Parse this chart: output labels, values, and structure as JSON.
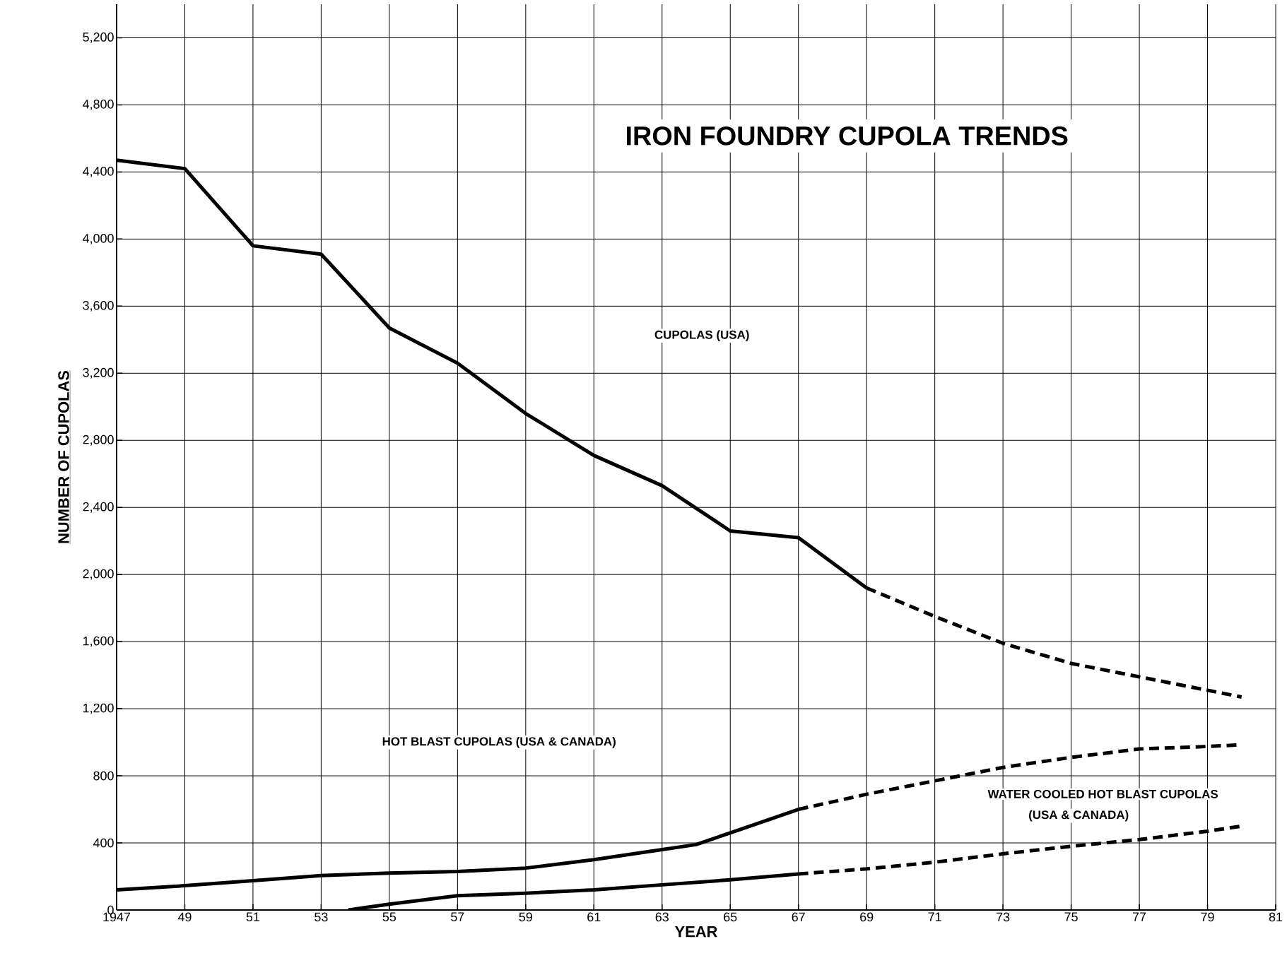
{
  "chart_data": {
    "type": "line",
    "title": "IRON FOUNDRY CUPOLA TRENDS",
    "xlabel": "YEAR",
    "ylabel": "NUMBER OF CUPOLAS",
    "xlim": [
      1947,
      1981
    ],
    "ylim": [
      0,
      5400
    ],
    "xticks": [
      {
        "value": 1947,
        "label": "1947"
      },
      {
        "value": 1949,
        "label": "49"
      },
      {
        "value": 1951,
        "label": "51"
      },
      {
        "value": 1953,
        "label": "53"
      },
      {
        "value": 1955,
        "label": "55"
      },
      {
        "value": 1957,
        "label": "57"
      },
      {
        "value": 1959,
        "label": "59"
      },
      {
        "value": 1961,
        "label": "61"
      },
      {
        "value": 1963,
        "label": "63"
      },
      {
        "value": 1965,
        "label": "65"
      },
      {
        "value": 1967,
        "label": "67"
      },
      {
        "value": 1969,
        "label": "69"
      },
      {
        "value": 1971,
        "label": "71"
      },
      {
        "value": 1973,
        "label": "73"
      },
      {
        "value": 1975,
        "label": "75"
      },
      {
        "value": 1977,
        "label": "77"
      },
      {
        "value": 1979,
        "label": "79"
      },
      {
        "value": 1981,
        "label": "81"
      }
    ],
    "yticks": [
      0,
      400,
      800,
      {
        "value": 1200,
        "label": "1,200"
      },
      {
        "value": 1600,
        "label": "1,600"
      },
      {
        "value": 2000,
        "label": "2,000"
      },
      {
        "value": 2400,
        "label": "2,400"
      },
      {
        "value": 2800,
        "label": "2,800"
      },
      {
        "value": 3200,
        "label": "3,200"
      },
      {
        "value": 3600,
        "label": "3,600"
      },
      {
        "value": 4000,
        "label": "4,000"
      },
      {
        "value": 4400,
        "label": "4,400"
      },
      {
        "value": 4800,
        "label": "4,800"
      },
      {
        "value": 5200,
        "label": "5,200"
      }
    ],
    "grid": true,
    "marker": "none",
    "series": [
      {
        "color": "#000000",
        "line_style": "solid",
        "x": [
          1947,
          1949,
          1951,
          1953,
          1955,
          1957,
          1959,
          1961,
          1963,
          1965,
          1967,
          1969
        ],
        "values": [
          4470,
          4420,
          3960,
          3910,
          3470,
          3260,
          2960,
          2710,
          2530,
          2260,
          2220,
          1920
        ]
      },
      {
        "color": "#000000",
        "line_style": "dashed",
        "x": [
          1969,
          1971,
          1973,
          1975,
          1977,
          1979,
          1980
        ],
        "values": [
          1920,
          1750,
          1590,
          1470,
          1390,
          1310,
          1270
        ]
      },
      {
        "color": "#000000",
        "line_style": "solid",
        "x": [
          1947,
          1949,
          1951,
          1953,
          1955,
          1957,
          1959,
          1961,
          1963,
          1964,
          1965,
          1967
        ],
        "values": [
          120,
          145,
          175,
          205,
          220,
          230,
          250,
          300,
          360,
          390,
          460,
          600
        ]
      },
      {
        "color": "#000000",
        "line_style": "dashed",
        "x": [
          1967,
          1969,
          1971,
          1973,
          1975,
          1977,
          1979,
          1980
        ],
        "values": [
          600,
          690,
          770,
          850,
          910,
          960,
          975,
          985
        ]
      },
      {
        "color": "#000000",
        "line_style": "solid",
        "x": [
          1953.8,
          1955,
          1957,
          1959,
          1961,
          1963,
          1965,
          1967
        ],
        "values": [
          0,
          35,
          85,
          100,
          120,
          150,
          180,
          215
        ]
      },
      {
        "color": "#000000",
        "line_style": "dashed",
        "x": [
          1967,
          1969,
          1971,
          1973,
          1975,
          1977,
          1979,
          1980
        ],
        "values": [
          215,
          245,
          285,
          335,
          380,
          420,
          470,
          500
        ]
      }
    ],
    "annotations": [
      "CUPOLAS (USA)",
      "HOT BLAST CUPOLAS  (USA & CANADA)",
      "WATER COOLED HOT BLAST CUPOLAS",
      "(USA & CANADA)"
    ]
  }
}
